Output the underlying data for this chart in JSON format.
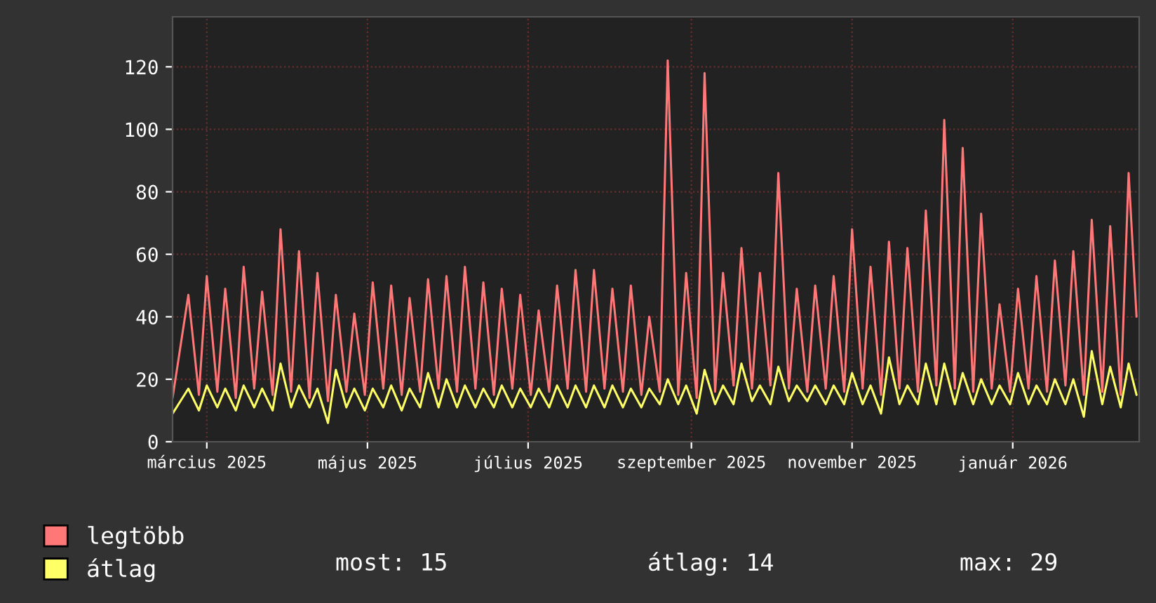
{
  "chart_data": {
    "type": "line",
    "x": [
      "2025-02-16",
      "2025-02-22",
      "2025-02-26",
      "2025-03-01",
      "2025-03-05",
      "2025-03-08",
      "2025-03-12",
      "2025-03-15",
      "2025-03-19",
      "2025-03-22",
      "2025-03-26",
      "2025-03-29",
      "2025-04-02",
      "2025-04-05",
      "2025-04-09",
      "2025-04-12",
      "2025-04-16",
      "2025-04-19",
      "2025-04-23",
      "2025-04-26",
      "2025-04-30",
      "2025-05-03",
      "2025-05-07",
      "2025-05-10",
      "2025-05-14",
      "2025-05-17",
      "2025-05-21",
      "2025-05-24",
      "2025-05-28",
      "2025-05-31",
      "2025-06-04",
      "2025-06-07",
      "2025-06-11",
      "2025-06-14",
      "2025-06-18",
      "2025-06-21",
      "2025-06-25",
      "2025-06-28",
      "2025-07-02",
      "2025-07-05",
      "2025-07-09",
      "2025-07-12",
      "2025-07-16",
      "2025-07-19",
      "2025-07-23",
      "2025-07-26",
      "2025-07-30",
      "2025-08-02",
      "2025-08-06",
      "2025-08-09",
      "2025-08-13",
      "2025-08-16",
      "2025-08-20",
      "2025-08-23",
      "2025-08-27",
      "2025-08-30",
      "2025-09-03",
      "2025-09-06",
      "2025-09-10",
      "2025-09-13",
      "2025-09-17",
      "2025-09-20",
      "2025-09-24",
      "2025-09-27",
      "2025-10-01",
      "2025-10-04",
      "2025-10-08",
      "2025-10-11",
      "2025-10-15",
      "2025-10-18",
      "2025-10-22",
      "2025-10-25",
      "2025-10-29",
      "2025-11-01",
      "2025-11-05",
      "2025-11-08",
      "2025-11-12",
      "2025-11-15",
      "2025-11-19",
      "2025-11-22",
      "2025-11-26",
      "2025-11-29",
      "2025-12-03",
      "2025-12-06",
      "2025-12-10",
      "2025-12-13",
      "2025-12-17",
      "2025-12-20",
      "2025-12-24",
      "2025-12-27",
      "2025-12-31",
      "2026-01-03",
      "2026-01-07",
      "2026-01-10",
      "2026-01-14",
      "2026-01-17",
      "2026-01-21",
      "2026-01-24",
      "2026-01-28",
      "2026-01-31",
      "2026-02-04",
      "2026-02-07",
      "2026-02-11",
      "2026-02-14",
      "2026-02-17"
    ],
    "series": [
      {
        "name": "legtöbb",
        "color": "#ff7777",
        "values": [
          14,
          47,
          15,
          53,
          16,
          49,
          14,
          56,
          17,
          48,
          15,
          68,
          16,
          61,
          14,
          54,
          13,
          47,
          16,
          41,
          15,
          51,
          17,
          50,
          15,
          46,
          16,
          52,
          17,
          53,
          16,
          56,
          17,
          51,
          15,
          49,
          17,
          47,
          15,
          42,
          16,
          50,
          17,
          55,
          16,
          55,
          17,
          49,
          16,
          50,
          15,
          40,
          16,
          122,
          15,
          54,
          14,
          118,
          16,
          54,
          18,
          62,
          17,
          54,
          18,
          86,
          17,
          49,
          16,
          50,
          17,
          53,
          16,
          68,
          17,
          56,
          15,
          64,
          17,
          62,
          16,
          74,
          18,
          103,
          17,
          94,
          16,
          73,
          17,
          44,
          16,
          49,
          17,
          53,
          16,
          58,
          18,
          61,
          15,
          71,
          16,
          69,
          15,
          86,
          40
        ]
      },
      {
        "name": "átlag",
        "color": "#ffff66",
        "values": [
          9,
          17,
          10,
          18,
          11,
          17,
          10,
          18,
          11,
          17,
          10,
          25,
          11,
          18,
          11,
          17,
          6,
          23,
          11,
          17,
          10,
          17,
          11,
          18,
          10,
          17,
          11,
          22,
          11,
          20,
          11,
          18,
          11,
          17,
          11,
          18,
          11,
          17,
          11,
          17,
          11,
          18,
          11,
          18,
          11,
          18,
          11,
          18,
          11,
          17,
          11,
          17,
          12,
          20,
          12,
          18,
          9,
          23,
          12,
          18,
          12,
          25,
          13,
          18,
          12,
          24,
          13,
          18,
          13,
          18,
          12,
          18,
          12,
          22,
          12,
          18,
          9,
          27,
          12,
          18,
          12,
          25,
          12,
          25,
          12,
          22,
          12,
          20,
          12,
          18,
          12,
          22,
          12,
          18,
          12,
          20,
          12,
          20,
          8,
          29,
          12,
          24,
          11,
          25,
          15
        ]
      }
    ],
    "ylim": [
      0,
      136
    ],
    "yticks": [
      0,
      20,
      40,
      60,
      80,
      100,
      120
    ],
    "xlim": [
      "2025-02-16",
      "2026-02-18"
    ],
    "xticks": [
      {
        "value": "2025-03-01",
        "label": "március 2025"
      },
      {
        "value": "2025-05-01",
        "label": "május 2025"
      },
      {
        "value": "2025-07-01",
        "label": "július 2025"
      },
      {
        "value": "2025-09-01",
        "label": "szeptember 2025"
      },
      {
        "value": "2025-11-01",
        "label": "november 2025"
      },
      {
        "value": "2026-01-01",
        "label": "január 2026"
      }
    ],
    "grid": true,
    "legend": "bottom",
    "marker": "none",
    "line_style": "solid",
    "annotations": [
      "most: 15",
      "átlag: 14",
      "max: 29"
    ]
  }
}
